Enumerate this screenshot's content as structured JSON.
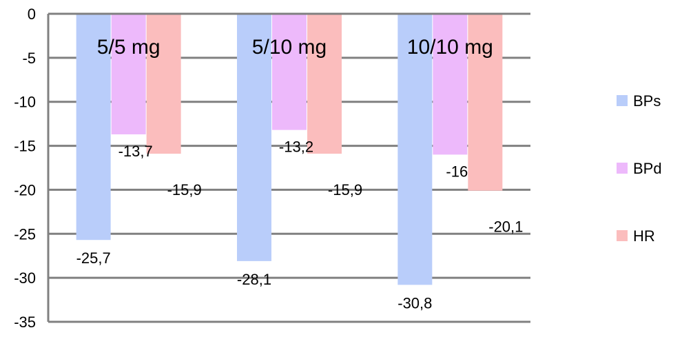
{
  "chart_data": {
    "type": "bar",
    "title": "",
    "xlabel": "",
    "ylabel": "",
    "categories": [
      "5/5 mg",
      "5/10 mg",
      "10/10 mg"
    ],
    "series": [
      {
        "name": "BPs",
        "color": "#B9CDFA",
        "values": [
          -25.7,
          -28.1,
          -30.8
        ],
        "labels": [
          "-25,7",
          "-28,1",
          "-30,8"
        ]
      },
      {
        "name": "BPd",
        "color": "#EDB9FB",
        "values": [
          -13.7,
          -13.2,
          -16
        ],
        "labels": [
          "-13,7",
          "-13,2",
          "-16"
        ]
      },
      {
        "name": "HR",
        "color": "#FBBDBD",
        "values": [
          -15.9,
          -15.9,
          -20.1
        ],
        "labels": [
          "-15,9",
          "-15,9",
          "-20,1"
        ]
      }
    ],
    "ylim": [
      -35,
      0
    ],
    "yticks": [
      0,
      -5,
      -10,
      -15,
      -20,
      -25,
      -30,
      -35
    ],
    "ytick_labels": [
      "0",
      "-5",
      "-10",
      "-15",
      "-20",
      "-25",
      "-30",
      "-35"
    ],
    "grid": true,
    "legend": "right"
  }
}
